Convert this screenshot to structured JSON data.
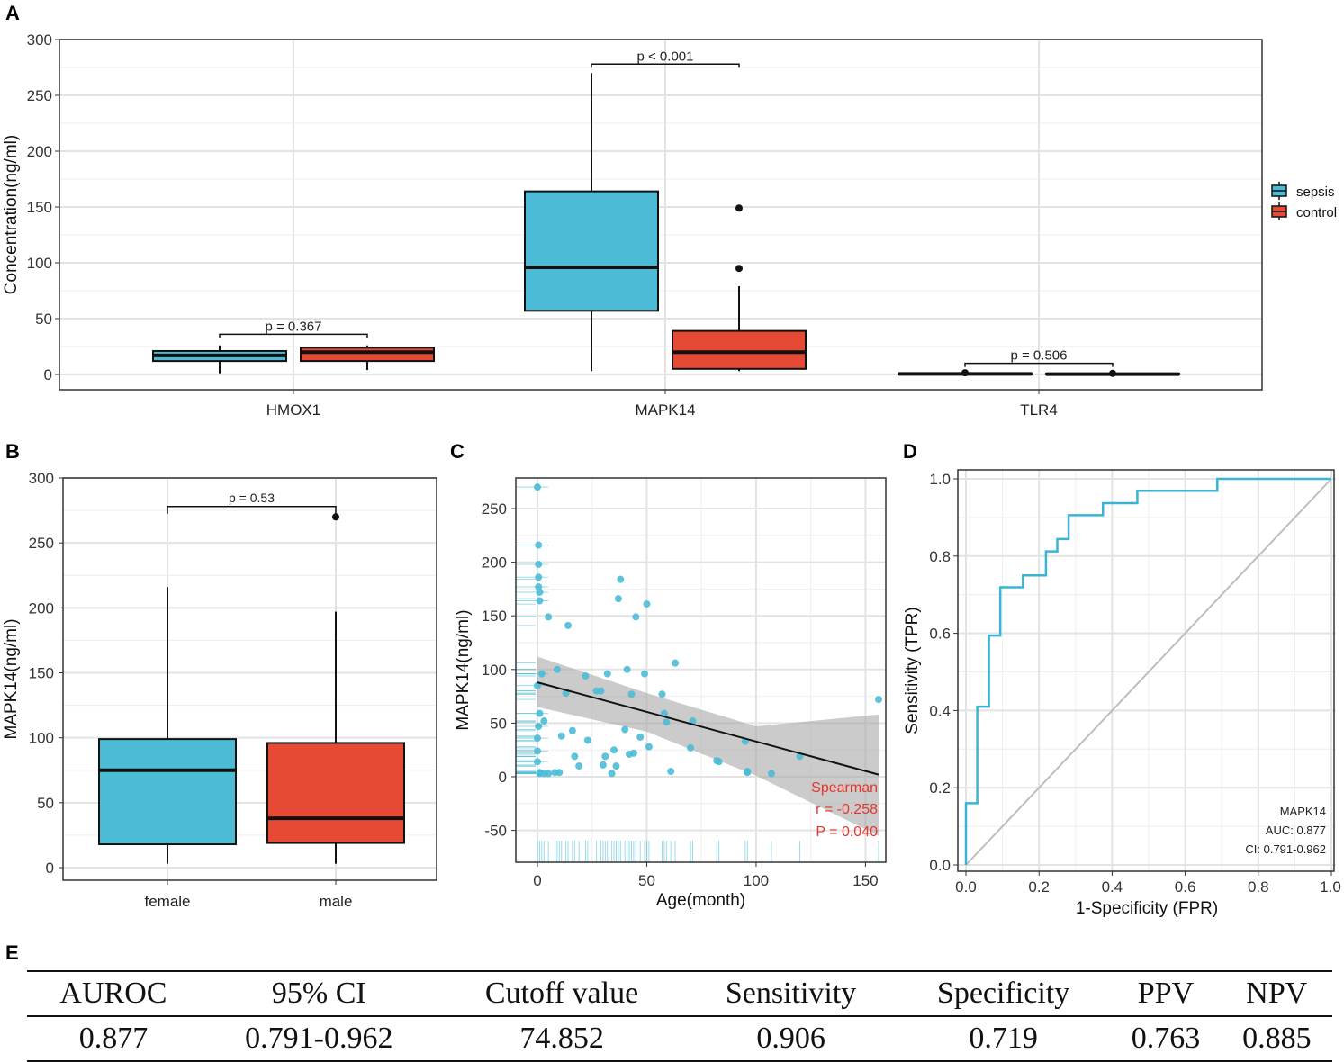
{
  "figure": {
    "panel_labels": [
      "A",
      "B",
      "C",
      "D",
      "E"
    ]
  },
  "colors": {
    "sepsis": "#4bbbd6",
    "control": "#e64a35",
    "roc": "#3ab3d4",
    "ribbon": "#a9a9a9",
    "annotation": "#e8352b"
  },
  "chart_data": [
    {
      "panel": "A",
      "type": "box",
      "ylabel": "Concentration(ng/ml)",
      "ylim": [
        -12,
        300
      ],
      "yticks": [
        0,
        50,
        100,
        150,
        200,
        250,
        300
      ],
      "categories": [
        "HMOX1",
        "MAPK14",
        "TLR4"
      ],
      "legend": {
        "position": "right",
        "entries": [
          "sepsis",
          "control"
        ]
      },
      "groups": [
        {
          "category": "HMOX1",
          "series": "sepsis",
          "min": 1,
          "q1": 12,
          "median": 17,
          "q3": 21,
          "max": 26,
          "outliers": []
        },
        {
          "category": "HMOX1",
          "series": "control",
          "min": 4,
          "q1": 12,
          "median": 20,
          "q3": 24,
          "max": 26,
          "outliers": []
        },
        {
          "category": "MAPK14",
          "series": "sepsis",
          "min": 3,
          "q1": 57,
          "median": 96,
          "q3": 164,
          "max": 270,
          "outliers": []
        },
        {
          "category": "MAPK14",
          "series": "control",
          "min": 3,
          "q1": 5,
          "median": 20,
          "q3": 39,
          "max": 79,
          "outliers": [
            95,
            149
          ]
        },
        {
          "category": "TLR4",
          "series": "sepsis",
          "min": 0,
          "q1": 0,
          "median": 0.5,
          "q3": 1,
          "max": 1,
          "outliers": [
            1.5
          ]
        },
        {
          "category": "TLR4",
          "series": "control",
          "min": 0,
          "q1": 0,
          "median": 0.3,
          "q3": 0.8,
          "max": 1,
          "outliers": [
            1
          ]
        }
      ],
      "comparisons": [
        {
          "category": "HMOX1",
          "label": "p = 0.367",
          "y": 36
        },
        {
          "category": "MAPK14",
          "label": "p < 0.001",
          "y": 278
        },
        {
          "category": "TLR4",
          "label": "p = 0.506",
          "y": 10
        }
      ]
    },
    {
      "panel": "B",
      "type": "box",
      "ylabel": "MAPK14(ng/ml)",
      "ylim": [
        -12,
        300
      ],
      "yticks": [
        0,
        50,
        100,
        150,
        200,
        250,
        300
      ],
      "categories": [
        "female",
        "male"
      ],
      "groups": [
        {
          "category": "female",
          "series": "sepsis",
          "min": 3,
          "q1": 18,
          "median": 75,
          "q3": 99,
          "max": 216,
          "outliers": []
        },
        {
          "category": "male",
          "series": "control",
          "min": 3,
          "q1": 19,
          "median": 38,
          "q3": 96,
          "max": 197,
          "outliers": [
            270
          ]
        }
      ],
      "comparisons": [
        {
          "from": "female",
          "to": "male",
          "label": "p = 0.53",
          "y": 278
        }
      ]
    },
    {
      "panel": "C",
      "type": "scatter",
      "xlabel": "Age(month)",
      "ylabel": "MAPK14(ng/ml)",
      "xlim": [
        -8,
        160
      ],
      "ylim": [
        -66,
        275
      ],
      "xticks": [
        0,
        50,
        100,
        150
      ],
      "yticks": [
        -50,
        0,
        50,
        100,
        150,
        200,
        250
      ],
      "points": [
        [
          0,
          270
        ],
        [
          0.5,
          216
        ],
        [
          0.5,
          198
        ],
        [
          0.5,
          186
        ],
        [
          0.5,
          177
        ],
        [
          1,
          172
        ],
        [
          1,
          164
        ],
        [
          0,
          85
        ],
        [
          1,
          59
        ],
        [
          0.5,
          47
        ],
        [
          0,
          36
        ],
        [
          0,
          24
        ],
        [
          0,
          14
        ],
        [
          1,
          4
        ],
        [
          1,
          3
        ],
        [
          2,
          96
        ],
        [
          3,
          52
        ],
        [
          3,
          3
        ],
        [
          5,
          3
        ],
        [
          5,
          149
        ],
        [
          8,
          4
        ],
        [
          9,
          100
        ],
        [
          10,
          4
        ],
        [
          11,
          38
        ],
        [
          13,
          78
        ],
        [
          14,
          141
        ],
        [
          16,
          43
        ],
        [
          17,
          19
        ],
        [
          19,
          10
        ],
        [
          22,
          94
        ],
        [
          23,
          34
        ],
        [
          27,
          80
        ],
        [
          29,
          80
        ],
        [
          30,
          11
        ],
        [
          31,
          19
        ],
        [
          32,
          96
        ],
        [
          34,
          3
        ],
        [
          35,
          25
        ],
        [
          36,
          10
        ],
        [
          37,
          166
        ],
        [
          38,
          184
        ],
        [
          40,
          44
        ],
        [
          41,
          100
        ],
        [
          42,
          21
        ],
        [
          43,
          77
        ],
        [
          44,
          22
        ],
        [
          45,
          149
        ],
        [
          47,
          37
        ],
        [
          49,
          96
        ],
        [
          50,
          161
        ],
        [
          51,
          28
        ],
        [
          57,
          77
        ],
        [
          58,
          59
        ],
        [
          59,
          51
        ],
        [
          61,
          5
        ],
        [
          63,
          106
        ],
        [
          70,
          27
        ],
        [
          71,
          52
        ],
        [
          82,
          15
        ],
        [
          83,
          14
        ],
        [
          95,
          33
        ],
        [
          96,
          5
        ],
        [
          96,
          4
        ],
        [
          107,
          3
        ],
        [
          120,
          19
        ],
        [
          156,
          72
        ]
      ],
      "rug_x": [
        0,
        1,
        2,
        3,
        5,
        8,
        9,
        10,
        11,
        13,
        14,
        16,
        17,
        19,
        22,
        23,
        27,
        29,
        30,
        31,
        32,
        34,
        35,
        36,
        37,
        38,
        40,
        41,
        42,
        43,
        44,
        45,
        47,
        49,
        50,
        51,
        57,
        58,
        59,
        61,
        63,
        70,
        71,
        82,
        83,
        95,
        96,
        107,
        120,
        156
      ],
      "fit": {
        "x0": 0,
        "y0": 88,
        "x1": 156,
        "y1": 2
      },
      "ribbon": {
        "lower": [
          [
            0,
            65
          ],
          [
            50,
            42
          ],
          [
            100,
            1
          ],
          [
            156,
            -55
          ]
        ],
        "upper": [
          [
            0,
            112
          ],
          [
            50,
            78
          ],
          [
            100,
            47
          ],
          [
            156,
            58
          ]
        ]
      },
      "annotation": {
        "method": "Spearman",
        "r": "r = -0.258",
        "p": "P = 0.040"
      }
    },
    {
      "panel": "D",
      "type": "line",
      "xlabel": "1-Specificity (FPR)",
      "ylabel": "Sensitivity (TPR)",
      "xlim": [
        0,
        1
      ],
      "ylim": [
        0,
        1
      ],
      "xticks": [
        "0.0",
        "0.2",
        "0.4",
        "0.6",
        "0.8",
        "1.0"
      ],
      "yticks": [
        "0.0",
        "0.2",
        "0.4",
        "0.6",
        "0.8",
        "1.0"
      ],
      "roc": [
        [
          0,
          0
        ],
        [
          0,
          0.16
        ],
        [
          0.031,
          0.16
        ],
        [
          0.031,
          0.41
        ],
        [
          0.063,
          0.41
        ],
        [
          0.063,
          0.594
        ],
        [
          0.094,
          0.594
        ],
        [
          0.094,
          0.719
        ],
        [
          0.156,
          0.719
        ],
        [
          0.156,
          0.75
        ],
        [
          0.219,
          0.75
        ],
        [
          0.219,
          0.812
        ],
        [
          0.25,
          0.812
        ],
        [
          0.25,
          0.844
        ],
        [
          0.281,
          0.844
        ],
        [
          0.281,
          0.906
        ],
        [
          0.375,
          0.906
        ],
        [
          0.375,
          0.937
        ],
        [
          0.469,
          0.937
        ],
        [
          0.469,
          0.969
        ],
        [
          0.688,
          0.969
        ],
        [
          0.688,
          1
        ],
        [
          1,
          1
        ]
      ],
      "legend": {
        "name": "MAPK14",
        "auc": "AUC: 0.877",
        "ci": "CI: 0.791-0.962"
      }
    }
  ],
  "table": {
    "headers": [
      "AUROC",
      "95% CI",
      "Cutoff value",
      "Sensitivity",
      "Specificity",
      "PPV",
      "NPV"
    ],
    "row": [
      "0.877",
      "0.791-0.962",
      "74.852",
      "0.906",
      "0.719",
      "0.763",
      "0.885"
    ]
  }
}
